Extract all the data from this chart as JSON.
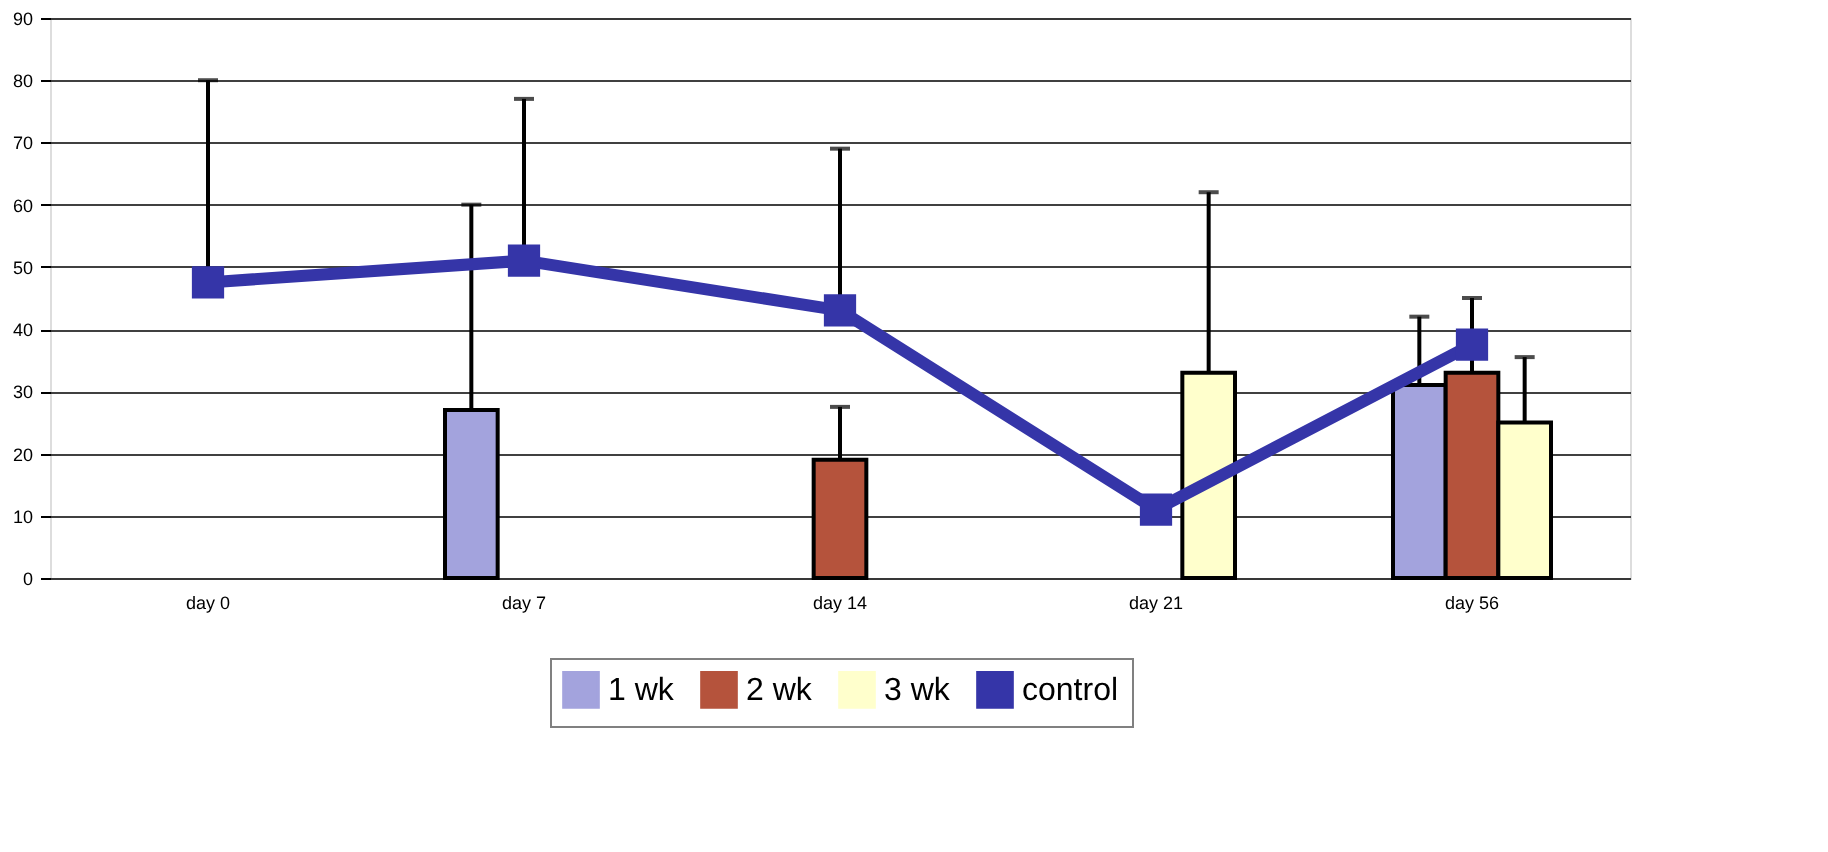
{
  "chart_data": {
    "type": "bar",
    "categories": [
      "day 0",
      "day 7",
      "day 14",
      "day 21",
      "day 56"
    ],
    "series": [
      {
        "name": "1 wk",
        "color": "#a3a3dd",
        "values": [
          null,
          27,
          null,
          null,
          31
        ],
        "errors": [
          null,
          [
            27,
            60
          ],
          null,
          null,
          [
            31,
            42
          ]
        ]
      },
      {
        "name": "2 wk",
        "color": "#b5533c",
        "values": [
          null,
          null,
          19,
          null,
          33
        ],
        "errors": [
          null,
          null,
          [
            19,
            27.5
          ],
          null,
          [
            33,
            45
          ]
        ]
      },
      {
        "name": "3 wk",
        "color": "#ffffcc",
        "values": [
          null,
          null,
          null,
          33,
          25
        ],
        "errors": [
          null,
          null,
          null,
          [
            33,
            62
          ],
          [
            25,
            35.5
          ]
        ]
      },
      {
        "name": "control",
        "type": "line",
        "color": "#3535a8",
        "marker": "square",
        "values": [
          47.5,
          51,
          43,
          11,
          37.5
        ],
        "errors": [
          [
            47.5,
            80
          ],
          [
            51,
            77
          ],
          [
            43,
            69
          ],
          null,
          null
        ]
      }
    ],
    "ylim": [
      0,
      90
    ],
    "yticks": [
      0,
      10,
      20,
      30,
      40,
      50,
      60,
      70,
      80,
      90
    ],
    "grid": "y",
    "legend": "bottom"
  }
}
